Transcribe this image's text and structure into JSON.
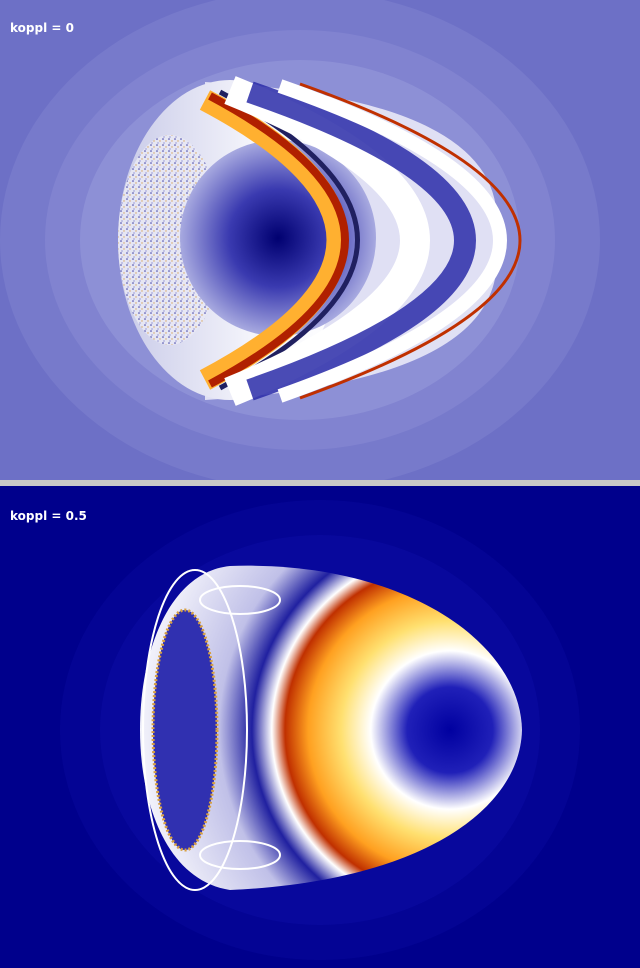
{
  "panels": [
    {
      "label": "koppl = 0"
    },
    {
      "label": "koppl = 0.5"
    }
  ]
}
